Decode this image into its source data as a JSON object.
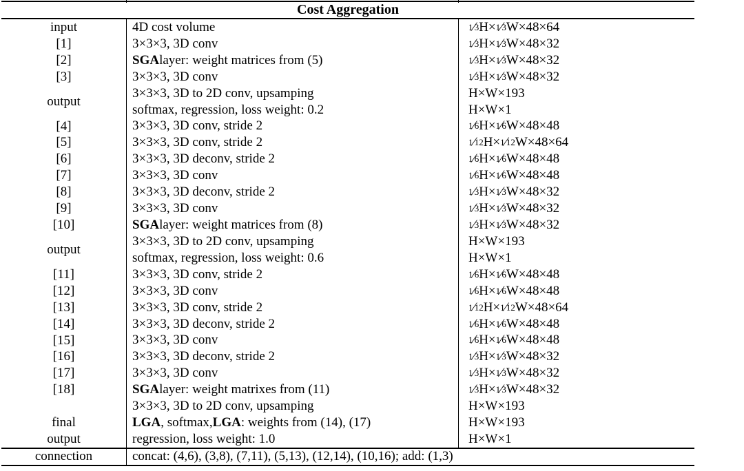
{
  "table": {
    "title": "Cost Aggregation",
    "blocks": [
      {
        "label": [
          "input"
        ],
        "lines": [
          {
            "desc": "4D cost volume",
            "size": "1/3H×1/3W×48×64"
          }
        ]
      },
      {
        "label": [
          "[1]"
        ],
        "lines": [
          {
            "desc": "3×3×3, 3D conv",
            "size": "1/3H×1/3W×48×32"
          }
        ]
      },
      {
        "label": [
          "[2]"
        ],
        "lines": [
          {
            "desc": "**SGA** layer: weight matrices from (5)",
            "size": "1/3H×1/3W×48×32"
          }
        ]
      },
      {
        "label": [
          "[3]"
        ],
        "lines": [
          {
            "desc": "3×3×3, 3D conv",
            "size": "1/3H×1/3W×48×32"
          }
        ]
      },
      {
        "label": [
          "output"
        ],
        "lines": [
          {
            "desc": "3×3×3, 3D to 2D conv, upsamping",
            "size": "H×W×193"
          },
          {
            "desc": "softmax, regression, loss weight: 0.2",
            "size": "H×W×1"
          }
        ]
      },
      {
        "label": [
          "[4]"
        ],
        "lines": [
          {
            "desc": "3×3×3, 3D conv, stride 2",
            "size": "1/6H×1/6W×48×48"
          }
        ]
      },
      {
        "label": [
          "[5]"
        ],
        "lines": [
          {
            "desc": "3×3×3, 3D conv, stride 2",
            "size": "1/12H×1/12W×48×64"
          }
        ]
      },
      {
        "label": [
          "[6]"
        ],
        "lines": [
          {
            "desc": "3×3×3, 3D deconv, stride 2",
            "size": "1/6H×1/6W×48×48"
          }
        ]
      },
      {
        "label": [
          "[7]"
        ],
        "lines": [
          {
            "desc": "3×3×3, 3D conv",
            "size": "1/6H×1/6W×48×48"
          }
        ]
      },
      {
        "label": [
          "[8]"
        ],
        "lines": [
          {
            "desc": "3×3×3, 3D deconv, stride 2",
            "size": "1/3H×1/3W×48×32"
          }
        ]
      },
      {
        "label": [
          "[9]"
        ],
        "lines": [
          {
            "desc": "3×3×3, 3D conv",
            "size": "1/3H×1/3W×48×32"
          }
        ]
      },
      {
        "label": [
          "[10]"
        ],
        "lines": [
          {
            "desc": "**SGA** layer: weight matrices from (8)",
            "size": "1/3H×1/3W×48×32"
          }
        ]
      },
      {
        "label": [
          "output"
        ],
        "lines": [
          {
            "desc": "3×3×3, 3D to 2D conv, upsamping",
            "size": "H×W×193"
          },
          {
            "desc": "softmax, regression, loss weight: 0.6",
            "size": "H×W×1"
          }
        ]
      },
      {
        "label": [
          "[11]"
        ],
        "lines": [
          {
            "desc": "3×3×3, 3D conv, stride 2",
            "size": "1/6H×1/6W×48×48"
          }
        ]
      },
      {
        "label": [
          "[12]"
        ],
        "lines": [
          {
            "desc": "3×3×3, 3D conv",
            "size": "1/6H×1/6W×48×48"
          }
        ]
      },
      {
        "label": [
          "[13]"
        ],
        "lines": [
          {
            "desc": "3×3×3, 3D conv, stride 2",
            "size": "1/12H×1/12W×48×64"
          }
        ]
      },
      {
        "label": [
          "[14]"
        ],
        "lines": [
          {
            "desc": "3×3×3, 3D deconv, stride 2",
            "size": "1/6H×1/6W×48×48"
          }
        ]
      },
      {
        "label": [
          "[15]"
        ],
        "lines": [
          {
            "desc": "3×3×3, 3D conv",
            "size": "1/6H×1/6W×48×48"
          }
        ]
      },
      {
        "label": [
          "[16]"
        ],
        "lines": [
          {
            "desc": "3×3×3, 3D deconv, stride 2",
            "size": "1/3H×1/3W×48×32"
          }
        ]
      },
      {
        "label": [
          "[17]"
        ],
        "lines": [
          {
            "desc": "3×3×3, 3D conv",
            "size": "1/3H×1/3W×48×32"
          }
        ]
      },
      {
        "label": [
          "[18]"
        ],
        "lines": [
          {
            "desc": "**SGA** layer: weight matrixes from (11)",
            "size": "1/3H×1/3W×48×32"
          }
        ]
      },
      {
        "label": [
          "final",
          "output"
        ],
        "lines": [
          {
            "desc": "3×3×3, 3D to 2D conv, upsamping",
            "size": "H×W×193"
          },
          {
            "desc": "**LGA**, softmax, **LGA**: weights from (14), (17)",
            "size": "H×W×193"
          },
          {
            "desc": "regression, loss weight: 1.0",
            "size": "H×W×1"
          }
        ]
      }
    ],
    "connection": {
      "label": "connection",
      "text": "concat: (4,6), (3,8), (7,11), (5,13), (12,14), (10,16); add: (1,3)"
    }
  }
}
